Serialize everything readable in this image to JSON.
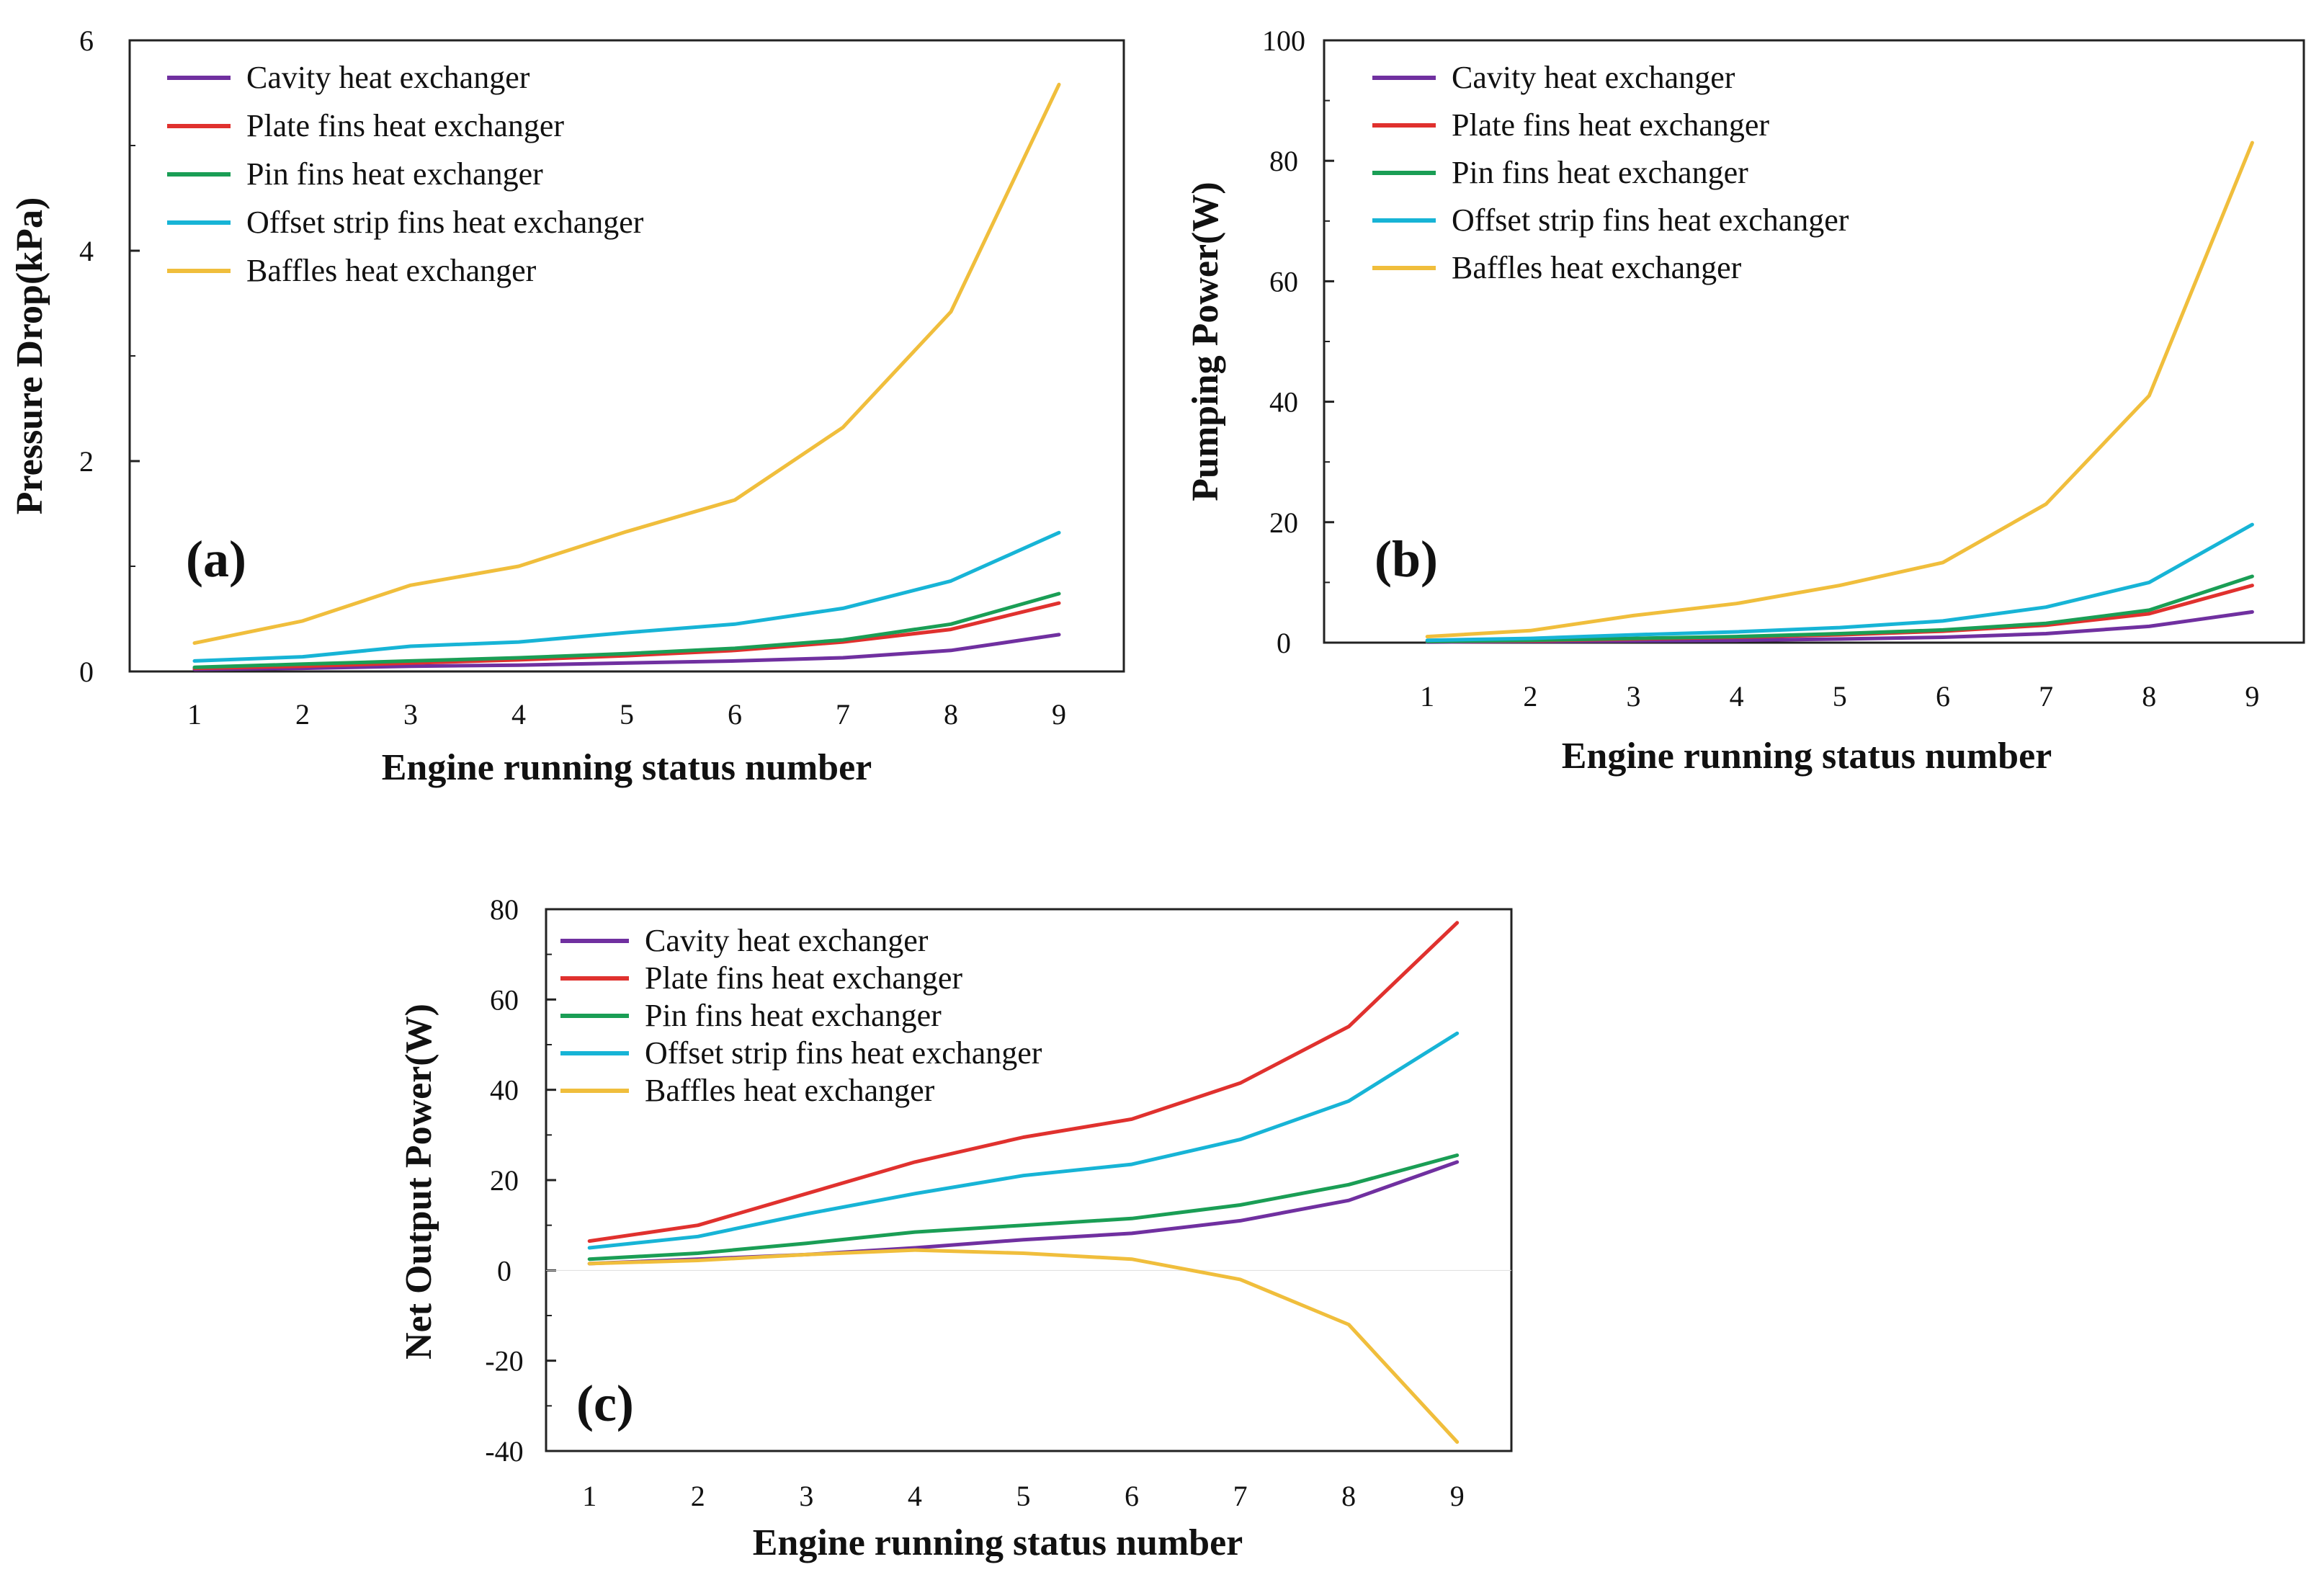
{
  "figure": {
    "description_free": true
  },
  "chart_data": [
    {
      "type": "line",
      "panel_label": "(a)",
      "xlabel": "Engine running status number",
      "ylabel": "Pressure Drop(kPa)",
      "x": [
        1,
        2,
        3,
        4,
        5,
        6,
        7,
        8,
        9
      ],
      "xticks": [
        "1",
        "2",
        "3",
        "4",
        "5",
        "6",
        "7",
        "8",
        "9"
      ],
      "xlim": [
        0.4,
        9.6
      ],
      "ylim": [
        0,
        6
      ],
      "yticks": [
        0,
        2,
        4,
        6
      ],
      "legend_position": "top-left",
      "series": [
        {
          "name": "Cavity heat exchanger",
          "color": "#7030A0",
          "values": [
            0.02,
            0.03,
            0.05,
            0.06,
            0.08,
            0.1,
            0.13,
            0.2,
            0.35
          ]
        },
        {
          "name": "Plate fins heat exchanger",
          "color": "#E0312E",
          "values": [
            0.03,
            0.05,
            0.08,
            0.11,
            0.15,
            0.2,
            0.28,
            0.4,
            0.65
          ]
        },
        {
          "name": "Pin fins heat exchanger",
          "color": "#1A9E55",
          "values": [
            0.04,
            0.07,
            0.1,
            0.13,
            0.17,
            0.22,
            0.3,
            0.45,
            0.74
          ]
        },
        {
          "name": "Offset strip fins heat exchanger",
          "color": "#17B4D6",
          "values": [
            0.1,
            0.14,
            0.24,
            0.28,
            0.37,
            0.45,
            0.6,
            0.86,
            1.32
          ]
        },
        {
          "name": "Baffles heat exchanger",
          "color": "#F0BE3C",
          "values": [
            0.27,
            0.48,
            0.82,
            1.0,
            1.33,
            1.63,
            2.32,
            3.42,
            5.58
          ]
        }
      ]
    },
    {
      "type": "line",
      "panel_label": "(b)",
      "xlabel": "Engine running status number",
      "ylabel": "Pumping Power(W)",
      "x": [
        1,
        2,
        3,
        4,
        5,
        6,
        7,
        8,
        9
      ],
      "xticks": [
        "1",
        "2",
        "3",
        "4",
        "5",
        "6",
        "7",
        "8",
        "9"
      ],
      "xlim": [
        0.0,
        9.5
      ],
      "ylim": [
        0,
        100
      ],
      "yticks": [
        0,
        20,
        40,
        60,
        80,
        100
      ],
      "legend_position": "top-left",
      "series": [
        {
          "name": "Cavity heat exchanger",
          "color": "#7030A0",
          "values": [
            0.1,
            0.2,
            0.3,
            0.4,
            0.6,
            0.9,
            1.5,
            2.7,
            5.1
          ]
        },
        {
          "name": "Plate fins heat exchanger",
          "color": "#E0312E",
          "values": [
            0.2,
            0.3,
            0.6,
            0.9,
            1.3,
            1.9,
            2.9,
            4.8,
            9.5
          ]
        },
        {
          "name": "Pin fins heat exchanger",
          "color": "#1A9E55",
          "values": [
            0.2,
            0.4,
            0.7,
            1.0,
            1.5,
            2.1,
            3.2,
            5.4,
            11.0
          ]
        },
        {
          "name": "Offset strip fins heat exchanger",
          "color": "#17B4D6",
          "values": [
            0.4,
            0.7,
            1.3,
            1.8,
            2.5,
            3.6,
            5.9,
            10.0,
            19.6
          ]
        },
        {
          "name": "Baffles heat exchanger",
          "color": "#F0BE3C",
          "values": [
            1.0,
            2.0,
            4.5,
            6.5,
            9.5,
            13.3,
            23.0,
            41.0,
            83.0
          ]
        }
      ]
    },
    {
      "type": "line",
      "panel_label": "(c)",
      "xlabel": "Engine running status number",
      "ylabel": "Net Output Power(W)",
      "x": [
        1,
        2,
        3,
        4,
        5,
        6,
        7,
        8,
        9
      ],
      "xticks": [
        "1",
        "2",
        "3",
        "4",
        "5",
        "6",
        "7",
        "8",
        "9"
      ],
      "xlim": [
        0.6,
        9.5
      ],
      "ylim": [
        -40,
        80
      ],
      "yticks": [
        -40,
        -20,
        0,
        20,
        40,
        60,
        80
      ],
      "legend_position": "top-left",
      "series": [
        {
          "name": "Cavity heat exchanger",
          "color": "#7030A0",
          "values": [
            1.5,
            2.5,
            3.5,
            5.0,
            6.8,
            8.2,
            11.0,
            15.5,
            24.0
          ]
        },
        {
          "name": "Plate fins heat exchanger",
          "color": "#E0312E",
          "values": [
            6.5,
            10.0,
            17.0,
            24.0,
            29.5,
            33.5,
            41.5,
            54.0,
            77.0
          ]
        },
        {
          "name": "Pin fins heat exchanger",
          "color": "#1A9E55",
          "values": [
            2.5,
            3.8,
            6.0,
            8.5,
            10.0,
            11.5,
            14.5,
            19.0,
            25.5
          ]
        },
        {
          "name": "Offset strip fins heat exchanger",
          "color": "#17B4D6",
          "values": [
            5.0,
            7.5,
            12.5,
            17.0,
            21.0,
            23.5,
            29.0,
            37.5,
            52.5
          ]
        },
        {
          "name": "Baffles heat exchanger",
          "color": "#F0BE3C",
          "values": [
            1.5,
            2.2,
            3.5,
            4.5,
            3.8,
            2.5,
            -2.0,
            -12.0,
            -38.0
          ]
        }
      ]
    }
  ]
}
